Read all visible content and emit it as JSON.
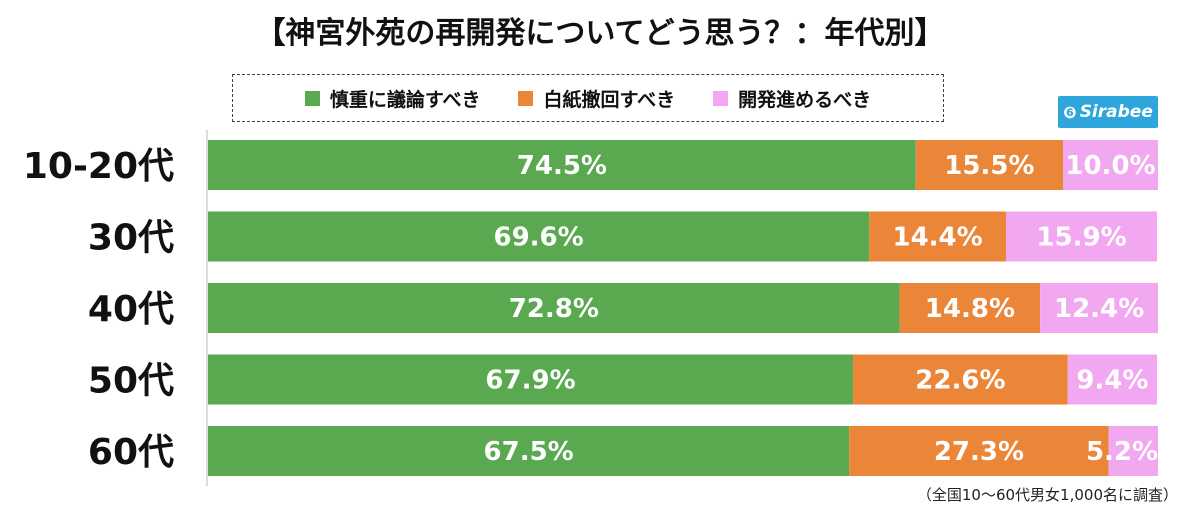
{
  "chart_data": {
    "type": "bar",
    "orientation": "horizontal",
    "stacked": true,
    "title": "【神宮外苑の再開発についてどう思う？：年代別】",
    "categories": [
      "10-20代",
      "30代",
      "40代",
      "50代",
      "60代"
    ],
    "series": [
      {
        "name": "慎重に議論すべき",
        "color": "#5aa84f",
        "values": [
          74.5,
          69.6,
          72.8,
          67.9,
          67.5
        ],
        "labels": [
          "74.5%",
          "69.6%",
          "72.8%",
          "67.9%",
          "67.5%"
        ]
      },
      {
        "name": "白紙撤回すべき",
        "color": "#eb8638",
        "values": [
          15.5,
          14.4,
          14.8,
          22.6,
          27.3
        ],
        "labels": [
          "15.5%",
          "14.4%",
          "14.8%",
          "22.6%",
          "27.3%"
        ]
      },
      {
        "name": "開発進めるべき",
        "color": "#f2a8f0",
        "values": [
          10.0,
          15.9,
          12.4,
          9.4,
          5.2
        ],
        "labels": [
          "10.0%",
          "15.9%",
          "12.4%",
          "9.4%",
          "5.2%"
        ]
      }
    ],
    "xlim": [
      0,
      100
    ],
    "legend_position": "top",
    "grid": false
  },
  "logo": {
    "text": "Sirabee",
    "mark": "❻",
    "color": "#2fa6db"
  },
  "footnote": "（全国10〜60代男女1,000名に調査）"
}
